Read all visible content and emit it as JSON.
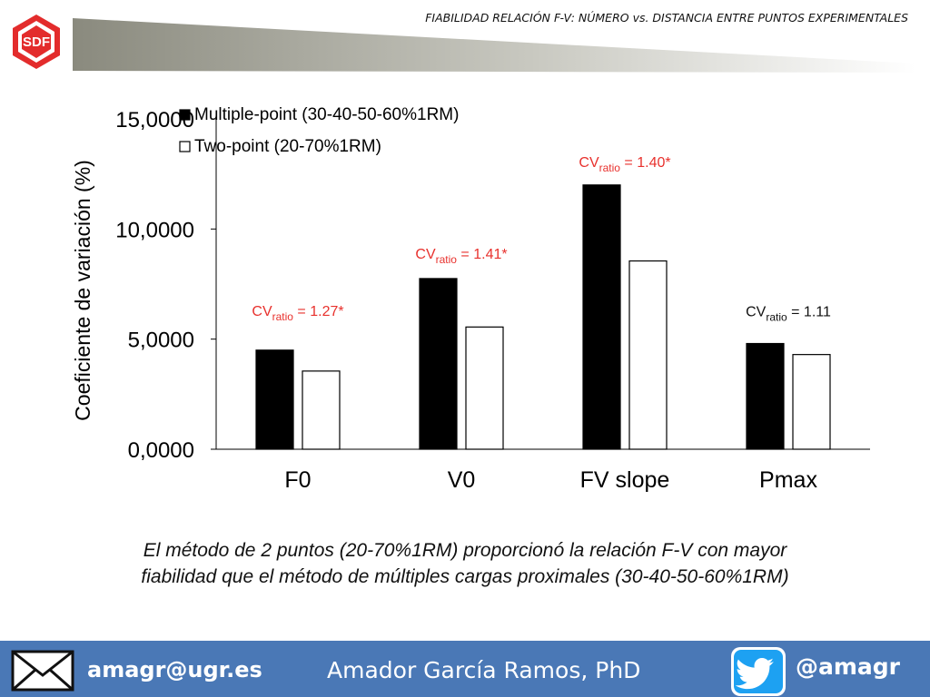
{
  "header": {
    "logo_text": "SDF",
    "title": "FIABILIDAD RELACIÓN F-V: NÚMERO vs. DISTANCIA ENTRE PUNTOS EXPERIMENTALES"
  },
  "chart_data": {
    "type": "bar",
    "ylabel": "Coeficiente de variación (%)",
    "ylim": [
      0,
      15
    ],
    "yticks": [
      0,
      5,
      10,
      15
    ],
    "ytick_labels": [
      "0,0000",
      "5,0000",
      "10,0000",
      "15,0000"
    ],
    "categories": [
      "F0",
      "V0",
      "FV slope",
      "Pmax"
    ],
    "series": [
      {
        "name": "Multiple-point (30-40-50-60%1RM)",
        "values": [
          4.5,
          7.75,
          12.0,
          4.8
        ],
        "color": "#000000"
      },
      {
        "name": "Two-point (20-70%1RM)",
        "values": [
          3.55,
          5.55,
          8.55,
          4.3
        ],
        "color": "#ffffff"
      }
    ],
    "annotations": [
      {
        "prefix": "CV",
        "sub": "ratio",
        "suffix": " = 1.27*",
        "color": "#e8312d"
      },
      {
        "prefix": "CV",
        "sub": "ratio",
        "suffix": " = 1.41*",
        "color": "#e8312d"
      },
      {
        "prefix": "CV",
        "sub": "ratio",
        "suffix": " = 1.40*",
        "color": "#e8312d"
      },
      {
        "prefix": "CV",
        "sub": "ratio",
        "suffix": " = 1.11",
        "color": "#111111"
      }
    ],
    "grid": false,
    "legend_position": "top-left"
  },
  "caption": {
    "line1": "El método de 2 puntos (20-70%1RM) proporcionó la relación F-V con mayor",
    "line2": "fiabilidad que el método de múltiples cargas proximales (30-40-50-60%1RM)"
  },
  "footer": {
    "email": "amagr@ugr.es",
    "author": "Amador García Ramos, PhD",
    "handle": "@amagr",
    "mail_icon": "mail-icon",
    "twitter_icon": "twitter-icon"
  },
  "colors": {
    "brand_red": "#e32c2c",
    "footer_blue": "#4a78b6",
    "annotation_red": "#e8312d"
  }
}
